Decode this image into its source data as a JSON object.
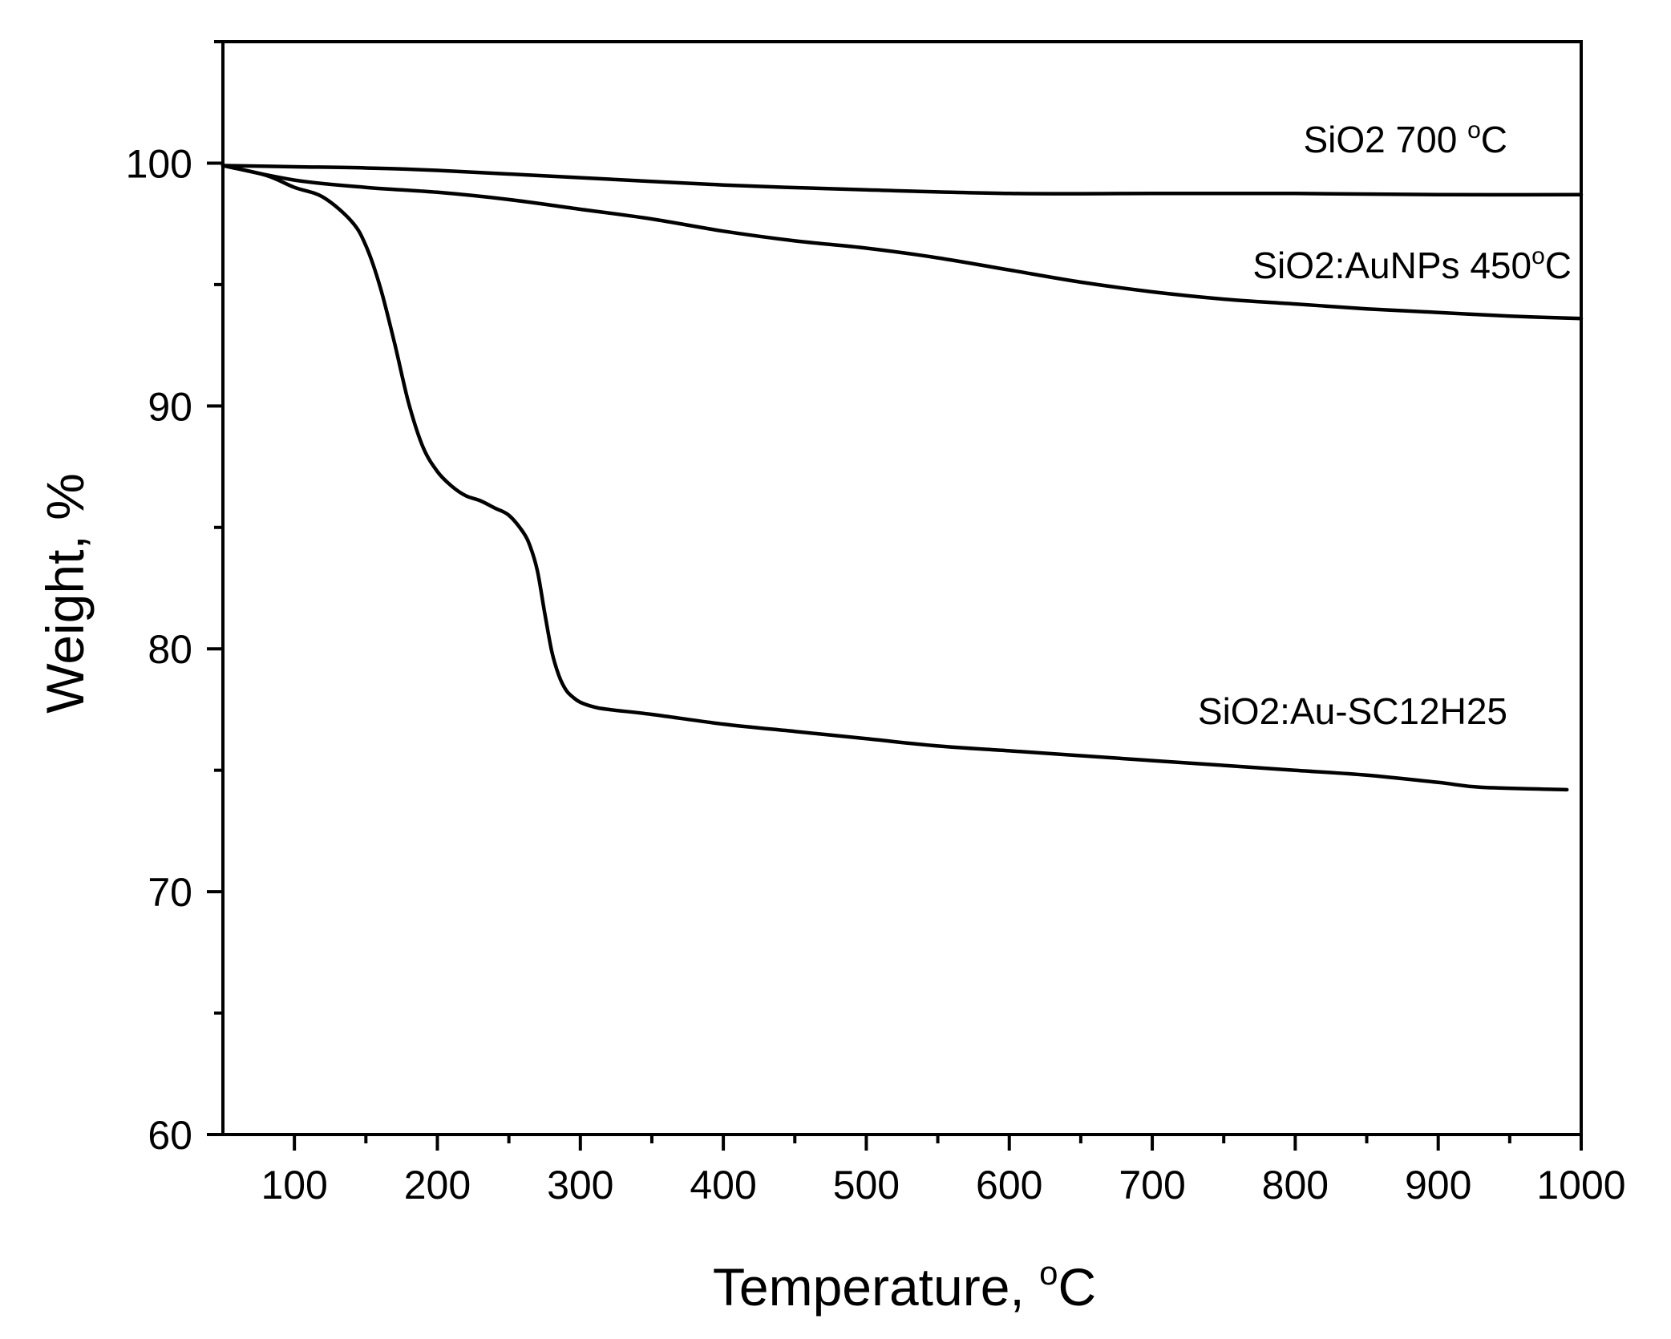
{
  "chart_data": {
    "type": "line",
    "title": "",
    "xlabel": "Temperature, ",
    "xlabel_unit": "C",
    "xlabel_unit_sup": "o",
    "ylabel": "Weight, %",
    "xlim": [
      50,
      1000
    ],
    "ylim": [
      60,
      105
    ],
    "x_major_ticks": [
      100,
      200,
      300,
      400,
      500,
      600,
      700,
      800,
      900,
      1000
    ],
    "x_minor_ticks": [
      150,
      250,
      350,
      450,
      550,
      650,
      750,
      850,
      950
    ],
    "y_major_ticks": [
      60,
      70,
      80,
      90,
      100
    ],
    "y_minor_ticks": [
      65,
      75,
      85,
      95,
      105
    ],
    "grid": false,
    "series": [
      {
        "name": "SiO2 700 °C",
        "label_text": "SiO2 700 ",
        "label_sup": "o",
        "label_suffix": "C",
        "x": [
          50,
          100,
          150,
          200,
          300,
          400,
          500,
          600,
          700,
          800,
          900,
          1000
        ],
        "y": [
          99.9,
          99.85,
          99.8,
          99.7,
          99.4,
          99.1,
          98.9,
          98.75,
          98.75,
          98.75,
          98.7,
          98.7
        ]
      },
      {
        "name": "SiO2:AuNPs 450°C",
        "label_text": "SiO2:AuNPs 450",
        "label_sup": "o",
        "label_suffix": "C",
        "x": [
          50,
          100,
          150,
          200,
          250,
          300,
          350,
          400,
          450,
          500,
          550,
          600,
          650,
          700,
          750,
          800,
          850,
          900,
          950,
          1000
        ],
        "y": [
          99.9,
          99.3,
          99.0,
          98.8,
          98.5,
          98.1,
          97.7,
          97.2,
          96.8,
          96.5,
          96.1,
          95.6,
          95.1,
          94.7,
          94.4,
          94.2,
          94.0,
          93.85,
          93.7,
          93.6
        ]
      },
      {
        "name": "SiO2:Au-SC12H25",
        "label_text": "SiO2:Au-SC12H25",
        "label_sup": "",
        "label_suffix": "",
        "x": [
          50,
          80,
          100,
          120,
          140,
          150,
          160,
          170,
          180,
          190,
          200,
          210,
          220,
          230,
          240,
          250,
          260,
          265,
          270,
          275,
          280,
          285,
          290,
          295,
          300,
          310,
          320,
          350,
          400,
          450,
          500,
          550,
          600,
          650,
          700,
          750,
          800,
          850,
          900,
          930,
          990
        ],
        "y": [
          99.9,
          99.5,
          99.0,
          98.6,
          97.6,
          96.6,
          94.9,
          92.6,
          90.1,
          88.3,
          87.3,
          86.7,
          86.3,
          86.1,
          85.8,
          85.5,
          84.8,
          84.2,
          83.2,
          81.5,
          79.9,
          78.9,
          78.3,
          78.0,
          77.8,
          77.6,
          77.5,
          77.3,
          76.9,
          76.6,
          76.3,
          76.0,
          75.8,
          75.6,
          75.4,
          75.2,
          75.0,
          74.8,
          74.5,
          74.3,
          74.2
        ]
      }
    ]
  }
}
